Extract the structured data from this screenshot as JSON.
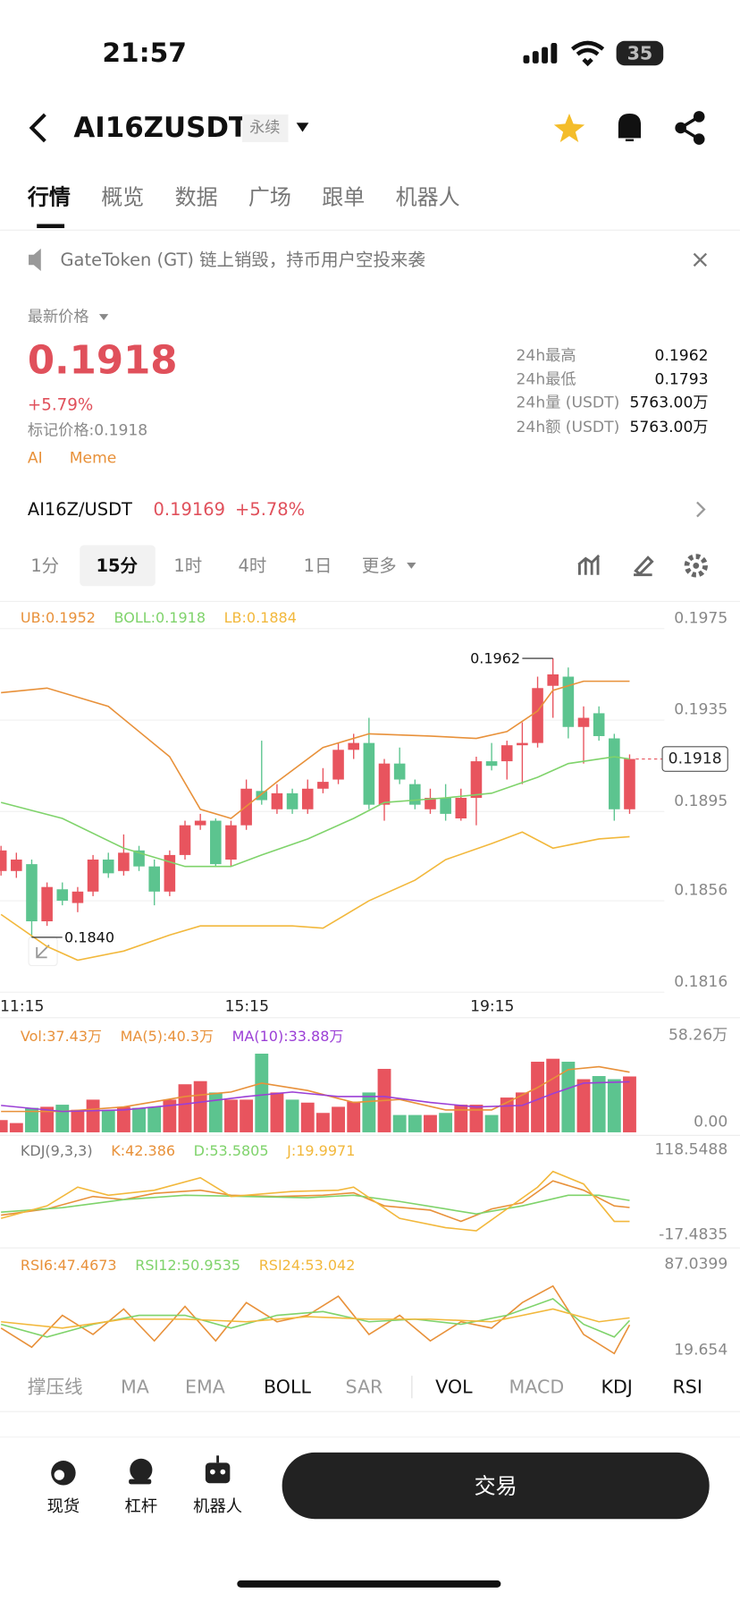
{
  "status": {
    "time": "21:57",
    "battery": "35"
  },
  "header": {
    "symbol": "AI16ZUSDT",
    "tag": "永续"
  },
  "tabs": [
    "行情",
    "概览",
    "数据",
    "广场",
    "跟单",
    "机器人"
  ],
  "notice": "GateToken (GT) 链上销毁，持币用户空投来袭",
  "ticker": {
    "price_label": "最新价格",
    "price": "0.1918",
    "change": "+5.79%",
    "mark_price_label": "标记价格:",
    "mark_price": "0.1918",
    "tags": [
      "AI",
      "Meme"
    ],
    "stats": [
      {
        "label": "24h最高",
        "value": "0.1962"
      },
      {
        "label": "24h最低",
        "value": "0.1793"
      },
      {
        "label": "24h量 (USDT)",
        "value": "5763.00万"
      },
      {
        "label": "24h额 (USDT)",
        "value": "5763.00万"
      }
    ],
    "spot": {
      "pair": "AI16Z/USDT",
      "price": "0.19169",
      "change": "+5.78%"
    }
  },
  "intervals": [
    "1分",
    "15分",
    "1时",
    "4时",
    "1日",
    "更多"
  ],
  "chart_data": [
    {
      "type": "candlestick",
      "up_color": "#e8545e",
      "down_color": "#5cc48f",
      "categories": [
        "11:15",
        null,
        null,
        null,
        null,
        null,
        null,
        null,
        null,
        null,
        null,
        null,
        null,
        null,
        null,
        null,
        "15:15",
        null,
        null,
        null,
        null,
        null,
        null,
        null,
        null,
        null,
        null,
        null,
        null,
        null,
        null,
        null,
        "19:15",
        null,
        null,
        null,
        null,
        null,
        null,
        null,
        null,
        null
      ],
      "open": [
        0.1869,
        0.1869,
        0.1872,
        0.1847,
        0.1861,
        0.1855,
        0.186,
        0.1874,
        0.1869,
        0.1878,
        0.1871,
        0.186,
        0.1876,
        0.1889,
        0.1891,
        0.1874,
        0.1889,
        0.1904,
        0.1896,
        0.1903,
        0.1896,
        0.1905,
        0.1909,
        0.1922,
        0.1925,
        0.1898,
        0.1916,
        0.1907,
        0.1896,
        0.1901,
        0.1892,
        0.1901,
        0.1917,
        0.1917,
        0.1924,
        0.1925,
        0.195,
        0.1954,
        0.1932,
        0.1938,
        0.1927,
        0.1896
      ],
      "high": [
        0.188,
        0.1877,
        0.1874,
        0.1864,
        0.1864,
        0.1862,
        0.1876,
        0.1877,
        0.1885,
        0.188,
        0.1874,
        0.1878,
        0.1891,
        0.1894,
        0.1892,
        0.1891,
        0.1909,
        0.1926,
        0.1907,
        0.1905,
        0.1909,
        0.1914,
        0.1925,
        0.1929,
        0.1936,
        0.1918,
        0.1923,
        0.1909,
        0.1905,
        0.1907,
        0.1905,
        0.1919,
        0.1925,
        0.1926,
        0.1934,
        0.1954,
        0.1962,
        0.1958,
        0.1941,
        0.1941,
        0.1929,
        0.192
      ],
      "low": [
        0.1867,
        0.1866,
        0.184,
        0.1845,
        0.1854,
        0.1851,
        0.1858,
        0.1866,
        0.1867,
        0.1869,
        0.1854,
        0.1858,
        0.1874,
        0.1887,
        0.1871,
        0.1871,
        0.1887,
        0.1898,
        0.1894,
        0.1894,
        0.1894,
        0.1903,
        0.1907,
        0.1918,
        0.1896,
        0.1891,
        0.1907,
        0.1896,
        0.1894,
        0.1891,
        0.1891,
        0.1889,
        0.1913,
        0.1909,
        0.1907,
        0.1923,
        0.1936,
        0.1927,
        0.1916,
        0.1926,
        0.1891,
        0.1894
      ],
      "close": [
        0.1878,
        0.1874,
        0.1847,
        0.1862,
        0.1856,
        0.186,
        0.1874,
        0.1868,
        0.1877,
        0.1871,
        0.186,
        0.1876,
        0.1889,
        0.1891,
        0.1872,
        0.1889,
        0.1905,
        0.19,
        0.1903,
        0.1896,
        0.1905,
        0.1908,
        0.1922,
        0.1925,
        0.1898,
        0.1916,
        0.1909,
        0.1898,
        0.1901,
        0.1894,
        0.1901,
        0.1917,
        0.1915,
        0.1924,
        0.1925,
        0.1949,
        0.1955,
        0.1932,
        0.1936,
        0.1928,
        0.1896,
        0.1918
      ],
      "overlays": [
        {
          "name": "UB:0.1952",
          "color": "#e8913a",
          "x": [
            0,
            3,
            7,
            11,
            13,
            15,
            18,
            21,
            24,
            28,
            31,
            33,
            35,
            36,
            38,
            41
          ],
          "values": [
            0.1947,
            0.1949,
            0.1941,
            0.1919,
            0.1896,
            0.1892,
            0.1908,
            0.1923,
            0.1929,
            0.1928,
            0.1927,
            0.193,
            0.1939,
            0.1948,
            0.1952,
            0.1952
          ]
        },
        {
          "name": "BOLL:0.1918",
          "color": "#7fd36b",
          "x": [
            0,
            4,
            8,
            12,
            15,
            17,
            20,
            23,
            25,
            29,
            32,
            35,
            37,
            40,
            41
          ],
          "values": [
            0.1899,
            0.1892,
            0.1879,
            0.1871,
            0.1871,
            0.1876,
            0.1883,
            0.1892,
            0.1899,
            0.1901,
            0.1903,
            0.191,
            0.1916,
            0.1919,
            0.1918
          ]
        },
        {
          "name": "LB:0.1884",
          "color": "#f2b83c",
          "x": [
            0,
            3,
            5,
            8,
            11,
            13,
            16,
            19,
            21,
            24,
            27,
            29,
            32,
            34,
            36,
            39,
            41
          ],
          "values": [
            0.185,
            0.1836,
            0.183,
            0.1834,
            0.1841,
            0.1845,
            0.1845,
            0.1845,
            0.1844,
            0.1856,
            0.1865,
            0.1874,
            0.1881,
            0.1886,
            0.1879,
            0.1883,
            0.1884
          ]
        }
      ],
      "high_label": "0.1962",
      "low_label": "0.1840",
      "ylim": [
        0.1816,
        0.1986
      ],
      "yticks": [
        0.1975,
        0.1935,
        0.1895,
        0.1856,
        0.1816
      ],
      "grid": true
    },
    {
      "type": "bar",
      "label": "Vol:37.43万",
      "label_color": "#e8913a",
      "values": [
        8.2,
        6.2,
        16.4,
        17.1,
        18.5,
        15.1,
        21.9,
        15.1,
        17.1,
        16.4,
        17.1,
        21.9,
        32.2,
        34.3,
        26.7,
        21.9,
        21.9,
        52.7,
        26.7,
        21.9,
        19.9,
        13.0,
        17.1,
        20.6,
        26.7,
        42.5,
        11.6,
        11.6,
        11.6,
        13.0,
        18.5,
        18.5,
        11.6,
        23.3,
        26.7,
        47.3,
        49.3,
        47.3,
        35.6,
        37.7,
        35.6,
        37.43
      ],
      "series": [
        {
          "name": "MA(5):40.3万",
          "color": "#e8913a",
          "x": [
            0,
            4,
            8,
            12,
            15,
            17,
            20,
            23,
            26,
            29,
            32,
            35,
            37,
            39,
            41
          ],
          "values": [
            14,
            14,
            17,
            24,
            27,
            33,
            28,
            20,
            22,
            15,
            15,
            30,
            42,
            44,
            40.3
          ]
        },
        {
          "name": "MA(10):33.88万",
          "color": "#9b3fd6",
          "x": [
            0,
            4,
            8,
            12,
            16,
            19,
            22,
            25,
            28,
            31,
            34,
            36,
            38,
            41
          ],
          "values": [
            18,
            14,
            15,
            19,
            24,
            27,
            24,
            24,
            20,
            17,
            18,
            26,
            33,
            33.88
          ]
        }
      ],
      "ylim": [
        0,
        58.26
      ],
      "yticks": [
        {
          "value": 58.26,
          "label": "58.26万"
        },
        {
          "value": 0,
          "label": "0.00"
        }
      ]
    },
    {
      "type": "line",
      "title": "KDJ(9,3,3)",
      "series": [
        {
          "name": "K:42.386",
          "color": "#e8913a",
          "x": [
            0,
            3,
            6,
            8,
            10,
            13,
            15,
            18,
            21,
            23,
            25,
            28,
            30,
            32,
            34,
            36,
            38,
            40,
            41
          ],
          "values": [
            30,
            40,
            60,
            55,
            65,
            70,
            62,
            60,
            62,
            66,
            45,
            38,
            20,
            40,
            50,
            85,
            70,
            45,
            42.386
          ]
        },
        {
          "name": "D:53.5805",
          "color": "#7fd36b",
          "x": [
            0,
            4,
            8,
            12,
            16,
            20,
            23,
            26,
            29,
            31,
            34,
            37,
            39,
            41
          ],
          "values": [
            35,
            42,
            55,
            62,
            60,
            58,
            62,
            52,
            40,
            32,
            45,
            62,
            62,
            53.5805
          ]
        },
        {
          "name": "J:19.9971",
          "color": "#f2b83c",
          "x": [
            0,
            3,
            5,
            7,
            10,
            13,
            15,
            19,
            22,
            23,
            26,
            29,
            31,
            33,
            35,
            36,
            38,
            40,
            41
          ],
          "values": [
            25,
            45,
            75,
            62,
            70,
            90,
            60,
            68,
            70,
            75,
            25,
            10,
            5,
            40,
            75,
            100,
            80,
            20,
            19.9971
          ]
        }
      ],
      "ylim": [
        -17.4835,
        118.5488
      ],
      "yticks": [
        118.5488,
        -17.4835
      ]
    },
    {
      "type": "line",
      "series": [
        {
          "name": "RSI6:47.4673",
          "color": "#e8913a",
          "x": [
            0,
            2,
            4,
            6,
            8,
            10,
            12,
            14,
            16,
            18,
            20,
            22,
            24,
            26,
            28,
            30,
            32,
            34,
            36,
            38,
            40,
            41
          ],
          "values": [
            45,
            30,
            55,
            40,
            60,
            35,
            62,
            35,
            65,
            50,
            55,
            70,
            40,
            55,
            35,
            50,
            45,
            65,
            78,
            40,
            25,
            47.4673
          ]
        },
        {
          "name": "RSI12:50.9535",
          "color": "#7fd36b",
          "x": [
            0,
            3,
            6,
            9,
            12,
            15,
            18,
            21,
            24,
            27,
            30,
            33,
            36,
            38,
            40,
            41
          ],
          "values": [
            48,
            38,
            48,
            55,
            55,
            45,
            55,
            58,
            50,
            52,
            48,
            55,
            68,
            48,
            38,
            50.9535
          ]
        },
        {
          "name": "RSI24:53.042",
          "color": "#f2b83c",
          "x": [
            0,
            4,
            8,
            12,
            16,
            20,
            24,
            28,
            32,
            36,
            39,
            41
          ],
          "values": [
            50,
            45,
            52,
            52,
            50,
            54,
            52,
            52,
            50,
            60,
            50,
            53.042
          ]
        }
      ],
      "ylim": [
        19.654,
        87.0399
      ],
      "yticks": [
        87.0399,
        19.654
      ]
    }
  ],
  "indicators": [
    "撑压线",
    "MA",
    "EMA",
    "BOLL",
    "SAR",
    "VOL",
    "MACD",
    "KDJ",
    "RSI"
  ],
  "bottom_nav": {
    "items": [
      "现货",
      "杠杆",
      "机器人"
    ],
    "trade": "交易"
  }
}
